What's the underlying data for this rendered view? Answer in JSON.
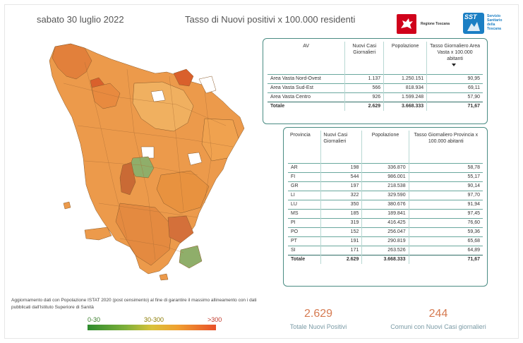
{
  "header": {
    "date": "sabato 30 luglio 2022",
    "title": "Tasso di Nuovi positivi x 100.000 residenti"
  },
  "logos": {
    "regione": "Regione Toscana",
    "sst_mark": "SST",
    "sst": "Servizio Sanitario della Toscana"
  },
  "area_vasta_table": {
    "headers": [
      "AV",
      "Nuovi Casi Giornalieri",
      "Popolazione",
      "Tasso Giornaliero Area Vasta x 100.000 abitanti"
    ],
    "rows": [
      [
        "Area Vasta Nord-Ovest",
        "1.137",
        "1.250.151",
        "90,95"
      ],
      [
        "Area Vasta Sud-Est",
        "566",
        "818.934",
        "69,11"
      ],
      [
        "Area Vasta Centro",
        "926",
        "1.599.248",
        "57,90"
      ]
    ],
    "total": [
      "Totale",
      "2.629",
      "3.668.333",
      "71,67"
    ]
  },
  "provincia_table": {
    "headers": [
      "Provincia",
      "Nuovi Casi Giornalieri",
      "Popolazione",
      "Tasso Giornaliero Provincia x 100.000 abitanti"
    ],
    "rows": [
      [
        "AR",
        "198",
        "336.870",
        "58,78"
      ],
      [
        "FI",
        "544",
        "986.001",
        "55,17"
      ],
      [
        "GR",
        "197",
        "218.538",
        "90,14"
      ],
      [
        "LI",
        "322",
        "329.590",
        "97,70"
      ],
      [
        "LU",
        "350",
        "380.676",
        "91,94"
      ],
      [
        "MS",
        "185",
        "189.841",
        "97,45"
      ],
      [
        "PI",
        "319",
        "416.425",
        "76,60"
      ],
      [
        "PO",
        "152",
        "256.047",
        "59,36"
      ],
      [
        "PT",
        "191",
        "290.819",
        "65,68"
      ],
      [
        "SI",
        "171",
        "263.526",
        "64,89"
      ]
    ],
    "total": [
      "Totale",
      "2.629",
      "3.668.333",
      "71,67"
    ]
  },
  "note": "Aggiornamento dati con Popolazione ISTAT 2020 (post censimento) al fine di garantire il massimo allineamento con i dati pubblicati dall'Istituto Superiore di Sanità",
  "legend": {
    "low": "0-30",
    "mid": "30-300",
    "high": ">300"
  },
  "kpis": {
    "total_positives_value": "2.629",
    "total_positives_label": "Totale Nuovi Positivi",
    "municipalities_value": "244",
    "municipalities_label": "Comuni con Nuovi Casi giornalieri"
  },
  "colors": {
    "accent": "#d67b52",
    "table_border": "#4a8c83",
    "map_orange": "#ec9a4b",
    "map_high": "#d9602c",
    "map_low": "#8fae6a"
  }
}
